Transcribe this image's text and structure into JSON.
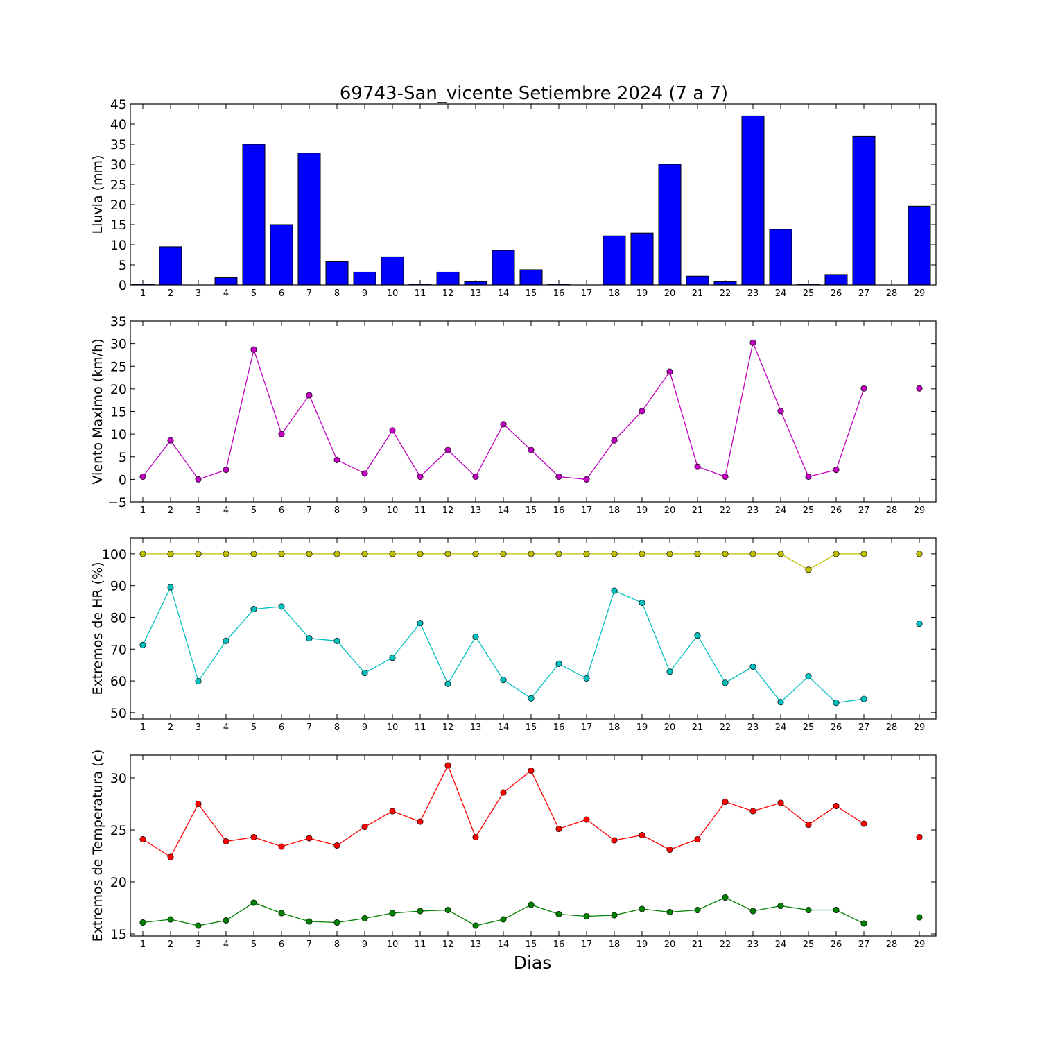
{
  "title": "69743-San_vicente Setiembre 2024  (7 a 7)",
  "xlabel": "Dias",
  "colors": {
    "rain": "#0000ff",
    "wind": "#bf00bf",
    "hr_max": "#bfbf00",
    "hr_min": "#00bfbf",
    "t_max": "#ff0000",
    "t_min": "#008000"
  },
  "chart_data": [
    {
      "type": "bar",
      "ylabel": "Lluvia (mm)",
      "ylim": [
        0,
        45
      ],
      "yticks": [
        0,
        5,
        10,
        15,
        20,
        25,
        30,
        35,
        40,
        45
      ],
      "x": [
        1,
        2,
        3,
        4,
        5,
        6,
        7,
        8,
        9,
        10,
        11,
        12,
        13,
        14,
        15,
        16,
        17,
        18,
        19,
        20,
        21,
        22,
        23,
        24,
        25,
        26,
        27,
        28,
        29
      ],
      "values": [
        0.2,
        9.5,
        0,
        1.8,
        35,
        15,
        32.8,
        5.8,
        3.2,
        7,
        0.2,
        3.2,
        0.8,
        8.6,
        3.8,
        0.2,
        0,
        12.2,
        12.9,
        30,
        2.2,
        0.8,
        42,
        13.8,
        0.2,
        2.6,
        37,
        null,
        19.6
      ],
      "grid": false
    },
    {
      "type": "line",
      "ylabel": "Viento Maximo (km/h)",
      "ylim": [
        -5,
        35
      ],
      "yticks": [
        -5,
        0,
        5,
        10,
        15,
        20,
        25,
        30,
        35
      ],
      "x": [
        1,
        2,
        3,
        4,
        5,
        6,
        7,
        8,
        9,
        10,
        11,
        12,
        13,
        14,
        15,
        16,
        17,
        18,
        19,
        20,
        21,
        22,
        23,
        24,
        25,
        26,
        27,
        28,
        29
      ],
      "series": [
        {
          "values": [
            0.6,
            8.6,
            0,
            2.1,
            28.7,
            10,
            18.6,
            4.3,
            1.3,
            10.8,
            0.6,
            6.5,
            0.6,
            12.2,
            6.5,
            0.6,
            0,
            8.6,
            15.1,
            23.8,
            2.8,
            0.6,
            30.2,
            15.1,
            0.6,
            2.1,
            20.1,
            null,
            20.1
          ]
        }
      ],
      "grid": false
    },
    {
      "type": "line",
      "ylabel": "Extremos de HR (%)",
      "ylim": [
        48,
        105
      ],
      "yticks": [
        50,
        60,
        70,
        80,
        90,
        100
      ],
      "x": [
        1,
        2,
        3,
        4,
        5,
        6,
        7,
        8,
        9,
        10,
        11,
        12,
        13,
        14,
        15,
        16,
        17,
        18,
        19,
        20,
        21,
        22,
        23,
        24,
        25,
        26,
        27,
        28,
        29
      ],
      "series": [
        {
          "values": [
            100,
            100,
            100,
            100,
            100,
            100,
            100,
            100,
            100,
            100,
            100,
            100,
            100,
            100,
            100,
            100,
            100,
            100,
            100,
            100,
            100,
            100,
            100,
            100,
            95,
            100,
            100,
            null,
            100
          ]
        },
        {
          "values": [
            71.3,
            89.5,
            59.9,
            72.6,
            82.6,
            83.4,
            73.4,
            72.6,
            62.5,
            67.3,
            78.2,
            59.1,
            73.9,
            60.3,
            54.5,
            65.4,
            60.8,
            88.4,
            84.6,
            62.9,
            74.3,
            59.4,
            64.5,
            53.3,
            61.4,
            53.1,
            54.3,
            null,
            78
          ]
        }
      ],
      "grid": false
    },
    {
      "type": "line",
      "ylabel": "Extremos de Temperatura (c)",
      "ylim": [
        14.8,
        32.2
      ],
      "yticks": [
        15,
        20,
        25,
        30
      ],
      "x": [
        1,
        2,
        3,
        4,
        5,
        6,
        7,
        8,
        9,
        10,
        11,
        12,
        13,
        14,
        15,
        16,
        17,
        18,
        19,
        20,
        21,
        22,
        23,
        24,
        25,
        26,
        27,
        28,
        29
      ],
      "series": [
        {
          "values": [
            24.1,
            22.4,
            27.5,
            23.9,
            24.3,
            23.4,
            24.2,
            23.5,
            25.3,
            26.8,
            25.8,
            31.2,
            24.3,
            28.6,
            30.7,
            25.1,
            26,
            24,
            24.5,
            23.1,
            24.1,
            27.7,
            26.8,
            27.6,
            25.5,
            27.3,
            25.6,
            null,
            24.3
          ]
        },
        {
          "values": [
            16.1,
            16.4,
            15.8,
            16.3,
            18,
            17,
            16.2,
            16.1,
            16.5,
            17,
            17.2,
            17.3,
            15.8,
            16.4,
            17.8,
            16.9,
            16.7,
            16.8,
            17.4,
            17.1,
            17.3,
            18.5,
            17.2,
            17.7,
            17.3,
            17.3,
            16,
            null,
            16.6
          ]
        }
      ],
      "grid": false
    }
  ]
}
